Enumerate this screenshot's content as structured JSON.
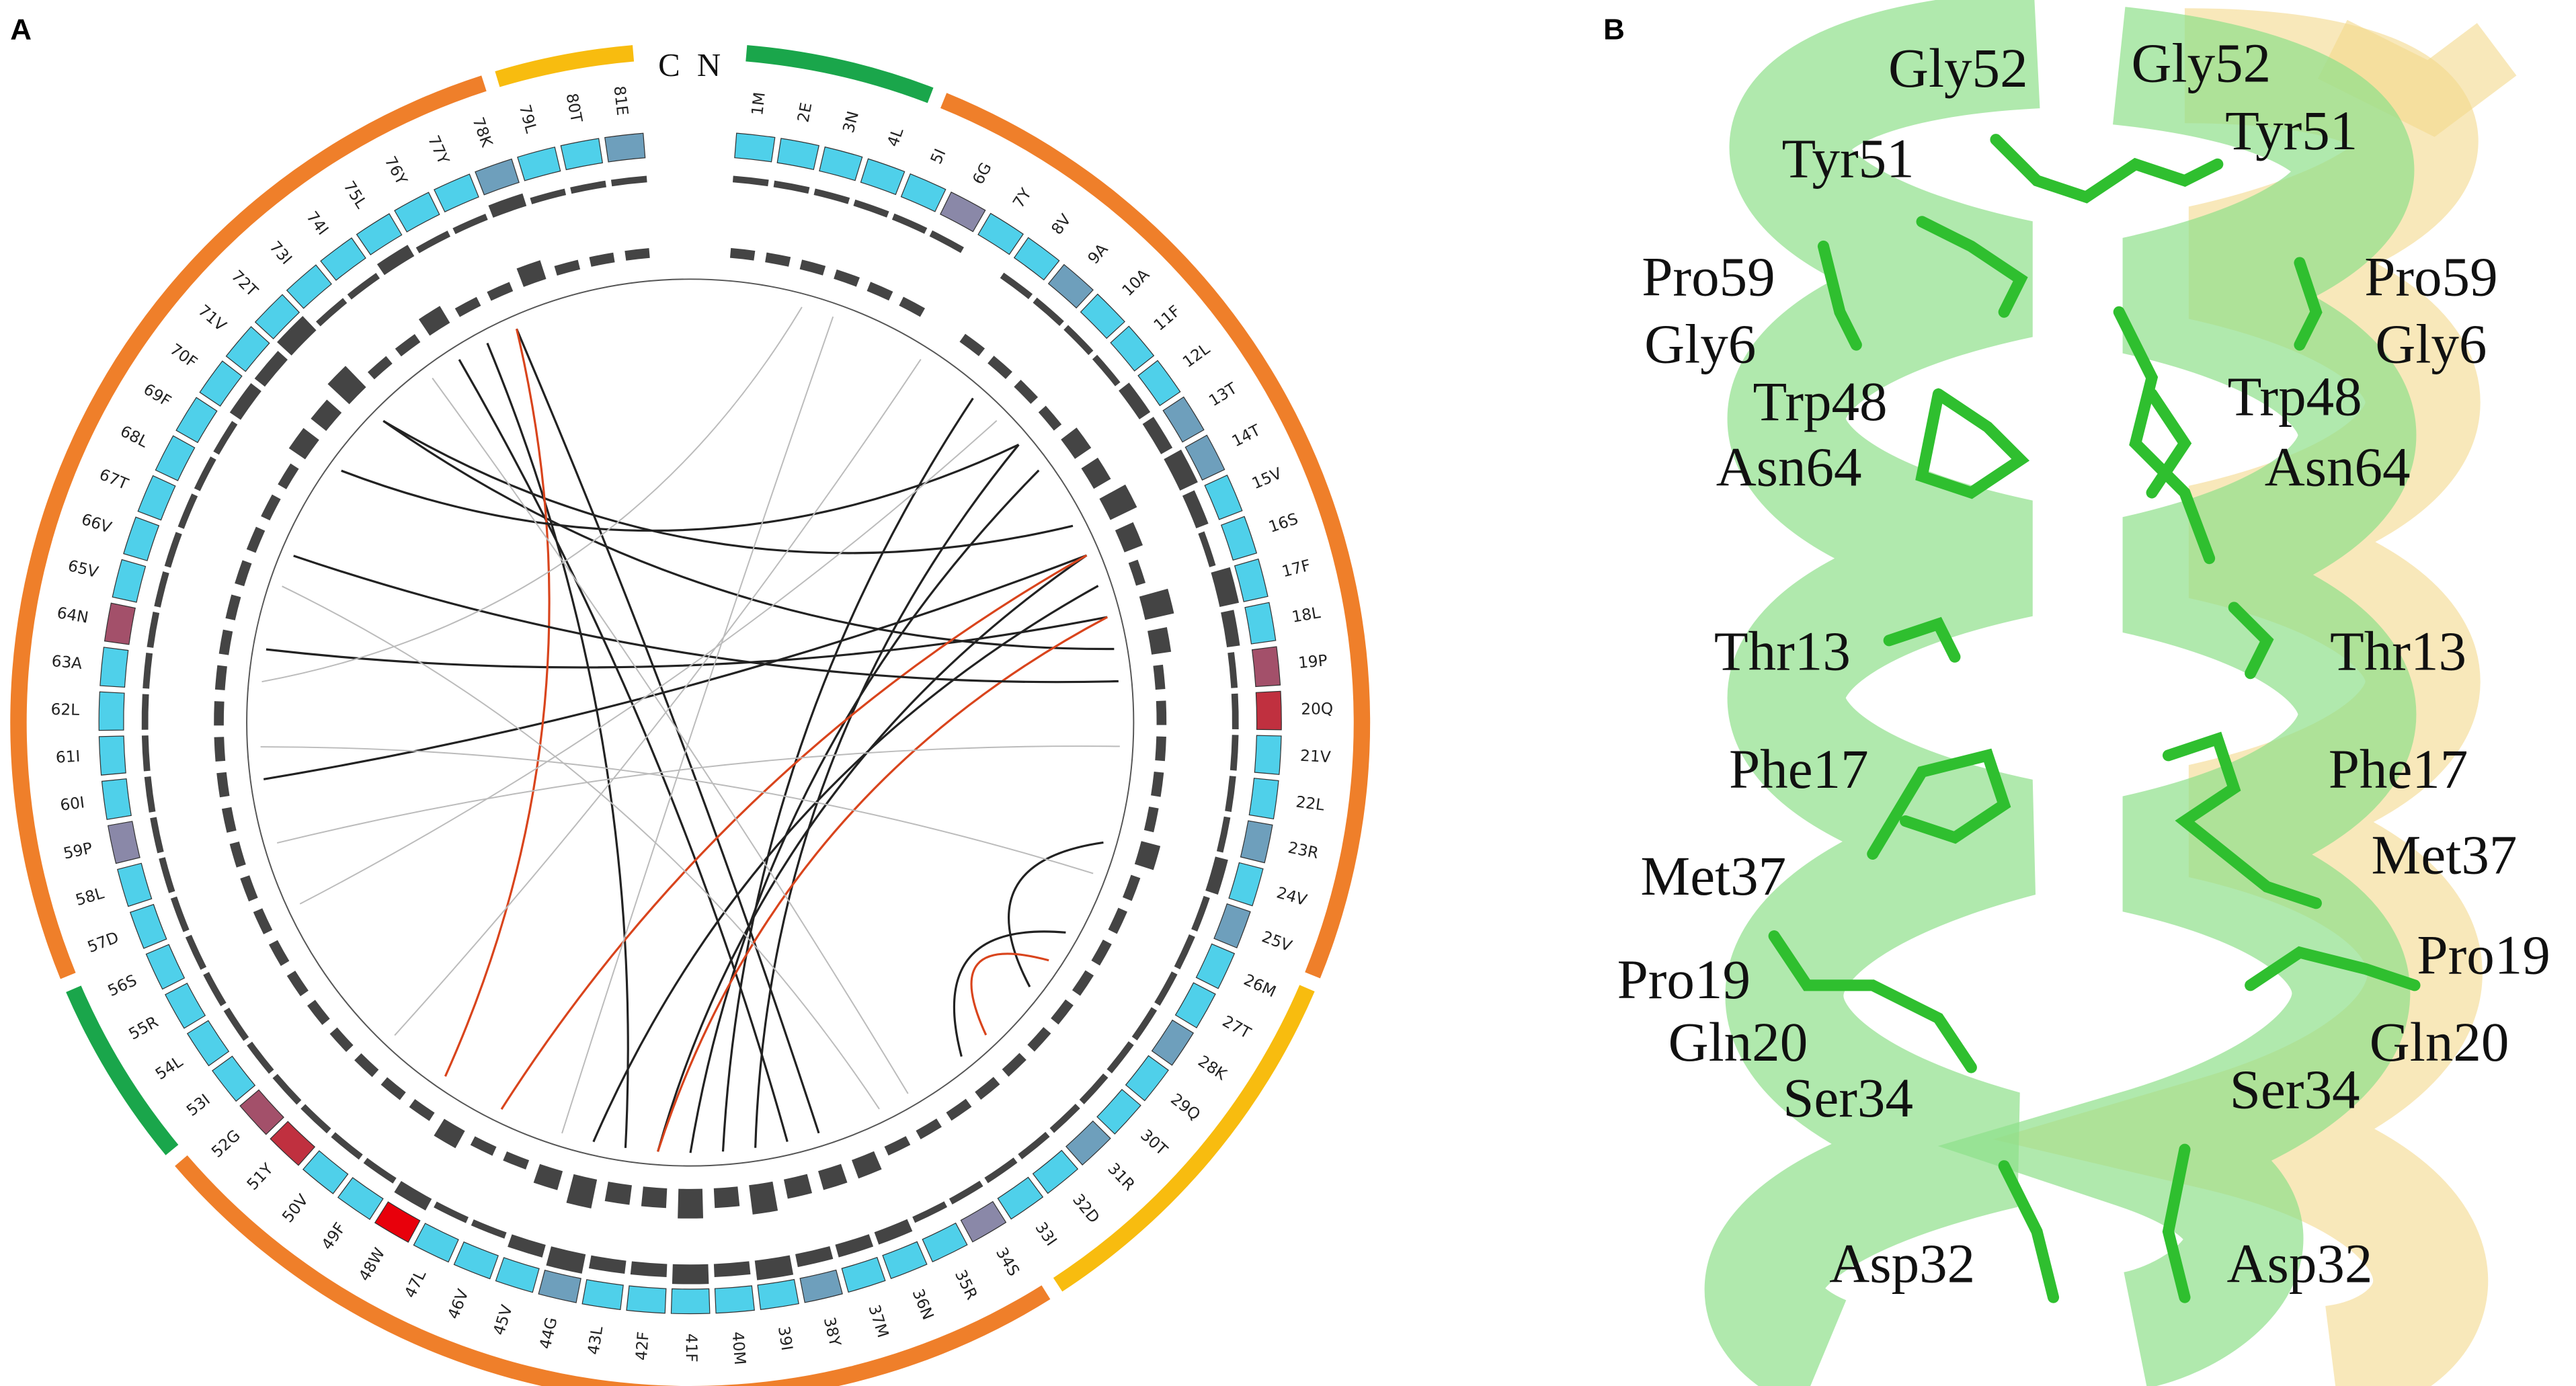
{
  "panels": {
    "a": "A",
    "b": "B"
  },
  "terminals": {
    "c": "C",
    "n": "N"
  },
  "residues": [
    "1M",
    "2E",
    "3N",
    "4L",
    "5I",
    "6G",
    "7Y",
    "8V",
    "9A",
    "10A",
    "11F",
    "12L",
    "13T",
    "14T",
    "15V",
    "16S",
    "17F",
    "18L",
    "19P",
    "20Q",
    "21V",
    "22L",
    "23R",
    "24V",
    "25V",
    "26M",
    "27T",
    "28K",
    "29Q",
    "30T",
    "31R",
    "32D",
    "33I",
    "34S",
    "35R",
    "36N",
    "37M",
    "38Y",
    "39I",
    "40M",
    "41F",
    "42F",
    "43L",
    "44G",
    "45V",
    "46V",
    "47L",
    "48W",
    "49F",
    "50V",
    "51Y",
    "52G",
    "53I",
    "54L",
    "55R",
    "56S",
    "57D",
    "58L",
    "59P",
    "60I",
    "61I",
    "62L",
    "63A",
    "64N",
    "65V",
    "66V",
    "67T",
    "68L",
    "69F",
    "70F",
    "71V",
    "72T",
    "73I",
    "74I",
    "75L",
    "76Y",
    "77Y",
    "78K",
    "79L",
    "80T",
    "81E"
  ],
  "contact_bars": [
    1,
    1,
    1,
    1,
    1,
    1,
    0,
    1,
    1,
    1,
    1,
    2,
    2,
    3,
    2,
    1,
    3,
    2,
    1,
    1,
    1,
    1,
    1,
    2,
    1,
    1,
    1,
    1,
    1,
    1,
    1,
    1,
    1,
    1,
    1,
    2,
    2,
    2,
    3,
    2,
    3,
    2,
    2,
    3,
    2,
    1,
    1,
    2,
    1,
    1,
    1,
    1,
    1,
    1,
    1,
    1,
    1,
    1,
    1,
    1,
    1,
    1,
    1,
    1,
    1,
    1,
    1,
    1,
    1,
    2,
    2,
    3,
    1,
    1,
    2,
    1,
    1,
    2,
    1,
    1,
    1
  ],
  "tile_color": "#4fd0ea",
  "tile_highlights": [
    {
      "index": 5,
      "color": "#8a88a8"
    },
    {
      "index": 8,
      "color": "#6e9fbc"
    },
    {
      "index": 12,
      "color": "#6e9fbc"
    },
    {
      "index": 13,
      "color": "#6e9fbc"
    },
    {
      "index": 18,
      "color": "#a3506a"
    },
    {
      "index": 19,
      "color": "#c0303f"
    },
    {
      "index": 22,
      "color": "#6e9fbc"
    },
    {
      "index": 24,
      "color": "#6e9fbc"
    },
    {
      "index": 27,
      "color": "#6e9fbc"
    },
    {
      "index": 30,
      "color": "#6e9fbc"
    },
    {
      "index": 33,
      "color": "#8a88a8"
    },
    {
      "index": 37,
      "color": "#6e9fbc"
    },
    {
      "index": 43,
      "color": "#6e9fbc"
    },
    {
      "index": 47,
      "color": "#e8000b"
    },
    {
      "index": 50,
      "color": "#c0303f"
    },
    {
      "index": 51,
      "color": "#a3506a"
    },
    {
      "index": 58,
      "color": "#8a88a8"
    },
    {
      "index": 63,
      "color": "#a3506a"
    },
    {
      "index": 77,
      "color": "#6e9fbc"
    },
    {
      "index": 80,
      "color": "#6e9fbc"
    }
  ],
  "regions": [
    {
      "start": 0,
      "end": 3,
      "color": "#1aa64b"
    },
    {
      "start": 4,
      "end": 24,
      "color": "#ef7f2a"
    },
    {
      "start": 25,
      "end": 32,
      "color": "#f8bc0f"
    },
    {
      "start": 33,
      "end": 51,
      "color": "#ef7f2a"
    },
    {
      "start": 52,
      "end": 55,
      "color": "#1aa64b"
    },
    {
      "start": 56,
      "end": 77,
      "color": "#ef7f2a"
    },
    {
      "start": 78,
      "end": 80,
      "color": "#f8bc0f"
    }
  ],
  "links": [
    [
      13,
      71,
      "black"
    ],
    [
      16,
      63,
      "black"
    ],
    [
      17,
      71,
      "black"
    ],
    [
      14,
      59,
      "black"
    ],
    [
      39,
      8,
      "black"
    ],
    [
      40,
      11,
      "black"
    ],
    [
      41,
      14,
      "black"
    ],
    [
      38,
      10,
      "black"
    ],
    [
      43,
      15,
      "black"
    ],
    [
      36,
      76,
      "black"
    ],
    [
      37,
      74,
      "black"
    ],
    [
      42,
      75,
      "black"
    ],
    [
      23,
      28,
      "black"
    ],
    [
      26,
      31,
      "black"
    ],
    [
      46,
      14,
      "red"
    ],
    [
      48,
      76,
      "red"
    ],
    [
      41,
      16,
      "red"
    ],
    [
      27,
      30,
      "red"
    ],
    [
      69,
      10,
      "black"
    ],
    [
      66,
      18,
      "black"
    ],
    [
      60,
      24,
      "gray"
    ],
    [
      57,
      20,
      "gray"
    ],
    [
      3,
      44,
      "gray"
    ],
    [
      6,
      50,
      "gray"
    ],
    [
      73,
      33,
      "gray"
    ],
    [
      65,
      34,
      "gray"
    ],
    [
      9,
      55,
      "gray"
    ],
    [
      2,
      62,
      "gray"
    ]
  ],
  "structure_labels": [
    "Gly52",
    "Gly52",
    "Tyr51",
    "Tyr51",
    "Pro59",
    "Pro59",
    "Gly6",
    "Gly6",
    "Trp48",
    "Trp48",
    "Asn64",
    "Asn64",
    "Thr13",
    "Thr13",
    "Phe17",
    "Phe17",
    "Met37",
    "Met37",
    "Pro19",
    "Pro19",
    "Gln20",
    "Gln20",
    "Ser34",
    "Ser34",
    "Asp32",
    "Asp32"
  ]
}
